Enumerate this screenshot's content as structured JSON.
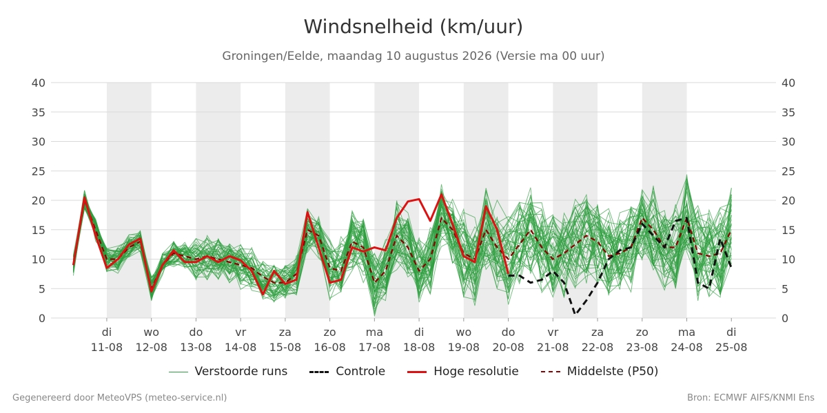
{
  "title": "Windsnelheid (km/uur)",
  "subtitle": "Groningen/Eelde, maandag 10 augustus 2026 (Versie ma 00 uur)",
  "footer_left": "Gegenereerd door MeteoVPS (meteo-service.nl)",
  "footer_right": "Bron: ECMWF AIFS/KNMI Ens",
  "legend": [
    {
      "key": "perturbed",
      "label": "Verstoorde runs"
    },
    {
      "key": "control",
      "label": "Controle"
    },
    {
      "key": "hires",
      "label": "Hoge resolutie"
    },
    {
      "key": "median",
      "label": "Middelste (P50)"
    }
  ],
  "colors": {
    "perturbed": "#2e9e3e",
    "control": "#111111",
    "hires": "#dd1111",
    "median": "#8b0000",
    "shade": "#ececec",
    "grid": "#d9d9d9"
  },
  "chart_data": {
    "type": "line",
    "title": "Windsnelheid (km/uur)",
    "ylim": [
      0,
      40
    ],
    "yticks": [
      0,
      5,
      10,
      15,
      20,
      25,
      30,
      35,
      40
    ],
    "xlim": [
      -1.25,
      15
    ],
    "x_step_days": 0.25,
    "shaded_days": [
      0,
      2,
      4,
      6,
      8,
      10,
      12
    ],
    "grid": true,
    "legend_position": "bottom",
    "day_ticks": [
      {
        "day": 0,
        "weekday": "di",
        "date": "11-08"
      },
      {
        "day": 1,
        "weekday": "wo",
        "date": "12-08"
      },
      {
        "day": 2,
        "weekday": "do",
        "date": "13-08"
      },
      {
        "day": 3,
        "weekday": "vr",
        "date": "14-08"
      },
      {
        "day": 4,
        "weekday": "za",
        "date": "15-08"
      },
      {
        "day": 5,
        "weekday": "zo",
        "date": "16-08"
      },
      {
        "day": 6,
        "weekday": "ma",
        "date": "17-08"
      },
      {
        "day": 7,
        "weekday": "di",
        "date": "18-08"
      },
      {
        "day": 8,
        "weekday": "wo",
        "date": "19-08"
      },
      {
        "day": 9,
        "weekday": "do",
        "date": "20-08"
      },
      {
        "day": 10,
        "weekday": "vr",
        "date": "21-08"
      },
      {
        "day": 11,
        "weekday": "za",
        "date": "22-08"
      },
      {
        "day": 12,
        "weekday": "zo",
        "date": "23-08"
      },
      {
        "day": 13,
        "weekday": "ma",
        "date": "24-08"
      },
      {
        "day": 14,
        "weekday": "di",
        "date": "25-08"
      }
    ],
    "hires": {
      "name": "Hoge resolutie",
      "x": [
        -0.75,
        -0.5,
        -0.25,
        0,
        0.25,
        0.5,
        0.75,
        1,
        1.25,
        1.5,
        1.75,
        2,
        2.25,
        2.5,
        2.75,
        3,
        3.25,
        3.5,
        3.75,
        4,
        4.25,
        4.5,
        4.75,
        5,
        5.25,
        5.5,
        5.75,
        6,
        6.25,
        6.5,
        6.75,
        7,
        7.25,
        7.5,
        7.75,
        8,
        8.25,
        8.5,
        8.75,
        9
      ],
      "values": [
        9,
        20.5,
        14,
        8.5,
        10,
        12.5,
        13.5,
        4.5,
        9,
        11.5,
        9.5,
        9.5,
        10.5,
        9.5,
        10.5,
        9.8,
        8,
        4,
        8,
        5.8,
        6.5,
        18,
        12,
        6,
        6.5,
        12,
        11.3,
        12,
        11.5,
        17,
        19.8,
        20.2,
        16.5,
        21,
        16,
        10.5,
        9.5,
        19,
        15,
        7.5
      ]
    },
    "median": {
      "name": "Middelste (P50)",
      "x": [
        -0.75,
        -0.5,
        -0.25,
        0,
        0.25,
        0.5,
        0.75,
        1,
        1.25,
        1.5,
        1.75,
        2,
        2.25,
        2.5,
        2.75,
        3,
        3.25,
        3.5,
        3.75,
        4,
        4.25,
        4.5,
        4.75,
        5,
        5.25,
        5.5,
        5.75,
        6,
        6.25,
        6.5,
        6.75,
        7,
        7.25,
        7.5,
        7.75,
        8,
        8.25,
        8.5,
        8.75,
        9,
        9.25,
        9.5,
        9.75,
        10,
        10.25,
        10.5,
        10.75,
        11,
        11.25,
        11.5,
        11.75,
        12,
        12.25,
        12.5,
        12.75,
        13,
        13.25,
        13.5,
        13.75,
        14
      ],
      "values": [
        9,
        20,
        15,
        10,
        10,
        12,
        13,
        5,
        9,
        11,
        10.5,
        10,
        10.5,
        10,
        9.5,
        9,
        8.5,
        7,
        6,
        6,
        7.5,
        15,
        14,
        8.5,
        8,
        13,
        12,
        6,
        8,
        14,
        12,
        8,
        10,
        17,
        15,
        11,
        10,
        15,
        12,
        10,
        12.5,
        15,
        12,
        10,
        11,
        12.5,
        14,
        13,
        10.5,
        11,
        12,
        17,
        15,
        12,
        12,
        17,
        11,
        10.5,
        11,
        15
      ]
    },
    "control": {
      "name": "Controle",
      "x": [
        9,
        9.25,
        9.5,
        9.75,
        10,
        10.25,
        10.5,
        10.75,
        11,
        11.25,
        11.5,
        11.75,
        12,
        12.25,
        12.5,
        12.75,
        13,
        13.25,
        13.5,
        13.75,
        14
      ],
      "values": [
        7.2,
        7.2,
        6,
        6.5,
        8,
        6,
        0.5,
        3,
        6,
        10,
        11.5,
        12,
        16,
        14,
        12,
        16.5,
        17,
        6,
        5,
        13.5,
        8.5
      ]
    },
    "perturbed": {
      "name": "Verstoorde runs",
      "count": 50
    }
  }
}
